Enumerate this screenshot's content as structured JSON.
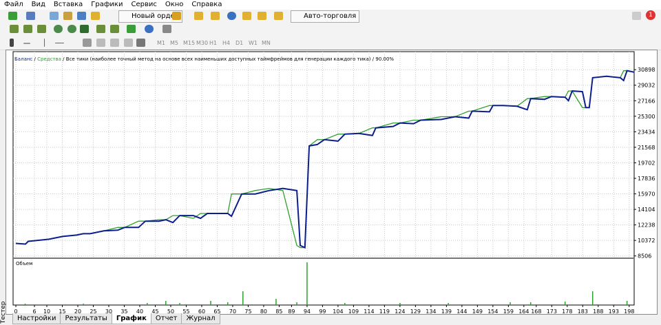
{
  "menu": [
    "Файл",
    "Вид",
    "Вставка",
    "Графики",
    "Сервис",
    "Окно",
    "Справка"
  ],
  "toolbar": {
    "new_order": "Новый ордер",
    "auto_trading": "Авто-торговля",
    "timeframes": [
      "M1",
      "M5",
      "M15",
      "M30",
      "H1",
      "H4",
      "D1",
      "W1",
      "MN"
    ]
  },
  "notification_count": 1,
  "side_label": "Тестер",
  "tabs": [
    "Настройки",
    "Результаты",
    "График",
    "Отчет",
    "Журнал"
  ],
  "active_tab": 2,
  "chart_data": {
    "type": "line",
    "subtitle": "Все тики (наиболее точный метод на основе всех наименьших доступных таймфреймов для генерации каждого тика)",
    "quality": "90.00%",
    "separator": "/",
    "x": [
      0,
      3.1,
      4,
      8.4,
      10.7,
      15.1,
      19.6,
      21.8,
      24,
      28.4,
      32.9,
      35.1,
      39.6,
      41.8,
      46.2,
      48.4,
      50.7,
      52.9,
      57.3,
      59.6,
      61.8,
      68.4,
      69.6,
      72.9,
      77.3,
      81.8,
      86.2,
      90.7,
      91.8,
      93.3,
      94.7,
      97.3,
      99.6,
      104,
      106.2,
      110.7,
      115.1,
      116.2,
      121.8,
      124,
      128.4,
      130.7,
      137.3,
      141.8,
      146.2,
      147.3,
      152.9,
      154,
      157.3,
      161.8,
      165.1,
      166.2,
      170.7,
      172.9,
      177.3,
      178.4,
      179.6,
      182.9,
      184,
      185.1,
      186.2,
      190.7,
      195.1,
      196.2,
      197.3,
      199.6
    ],
    "series": [
      {
        "name": "Средства",
        "color": "#2ca02c",
        "values": [
          10013,
          9929,
          10264,
          10431,
          10515,
          10850,
          11017,
          11184,
          11184,
          11519,
          11938,
          11938,
          12691,
          12691,
          12858,
          12858,
          13361,
          13361,
          13026,
          13612,
          13612,
          13612,
          15955,
          15955,
          16374,
          16625,
          16374,
          9762,
          9510,
          9510,
          21731,
          22484,
          22484,
          23154,
          23154,
          23237,
          23907,
          23907,
          24493,
          24493,
          24828,
          24828,
          25246,
          25246,
          25916,
          25916,
          26585,
          26585,
          26585,
          26502,
          27422,
          27422,
          27673,
          27673,
          27590,
          28343,
          28343,
          26334,
          26334,
          26334,
          29933,
          30101,
          29933,
          30770,
          30770,
          30603
        ]
      },
      {
        "name": "Баланс",
        "color": "#0a1e8c",
        "values": [
          10013,
          9929,
          10264,
          10431,
          10515,
          10850,
          11017,
          11184,
          11184,
          11519,
          11603,
          11938,
          11938,
          12691,
          12691,
          12858,
          12524,
          13361,
          13361,
          13026,
          13612,
          13612,
          13277,
          15955,
          15955,
          16374,
          16625,
          16374,
          9762,
          9510,
          21731,
          21898,
          22484,
          22317,
          23154,
          23237,
          22986,
          23907,
          24074,
          24493,
          24409,
          24828,
          24911,
          25246,
          25079,
          25916,
          25832,
          26585,
          26585,
          26502,
          26084,
          27422,
          27338,
          27673,
          27590,
          27171,
          28343,
          28259,
          26334,
          26334,
          29933,
          30101,
          29933,
          29598,
          30770,
          30603
        ]
      }
    ],
    "ylim": [
      8400,
      32570
    ],
    "yticks": [
      8506,
      10372,
      12238,
      14104,
      15970,
      17836,
      19702,
      21568,
      23434,
      25300,
      27166,
      29032,
      30898
    ],
    "xlim": [
      -0.9,
      199.6
    ],
    "xticks": [
      0,
      6,
      10,
      15,
      20,
      25,
      30,
      35,
      40,
      45,
      50,
      55,
      60,
      65,
      70,
      75,
      80,
      85,
      89,
      94,
      99,
      104,
      109,
      114,
      119,
      124,
      129,
      134,
      139,
      144,
      149,
      154,
      159,
      164,
      168,
      173,
      178,
      183,
      188,
      193,
      198
    ],
    "grid": true,
    "volume": {
      "name": "Объем",
      "color": "#2ca02c",
      "x": [
        3,
        21.8,
        42.4,
        48.4,
        52.9,
        62.9,
        68.4,
        73.3,
        84,
        90.7,
        94,
        106.2,
        124,
        139.6,
        159.6,
        166.2,
        177.3,
        186.2,
        197.3
      ],
      "values": [
        2,
        2,
        3,
        6,
        3,
        6,
        4,
        20,
        9,
        4,
        62,
        3,
        3,
        3,
        4,
        4,
        5,
        20,
        6
      ]
    }
  }
}
